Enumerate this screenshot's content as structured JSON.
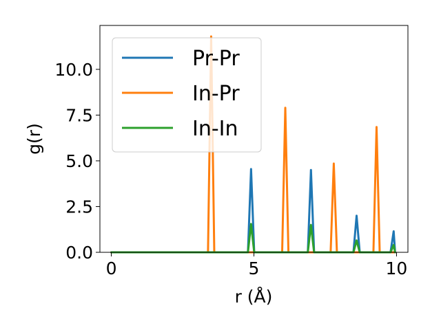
{
  "chart_data": {
    "type": "line",
    "title": "",
    "xlabel": "r (Å)",
    "ylabel": "g(r)",
    "xlim": [
      -0.4,
      10.4
    ],
    "ylim": [
      0,
      12.4
    ],
    "xticks": [
      0,
      5,
      10
    ],
    "xtick_labels": [
      "0",
      "5",
      "10"
    ],
    "yticks": [
      0,
      2.5,
      5.0,
      7.5,
      10.0
    ],
    "ytick_labels": [
      "0.0",
      "2.5",
      "5.0",
      "7.5",
      "10.0"
    ],
    "grid": false,
    "legend_position": "upper-left",
    "series": [
      {
        "name": "Pr-Pr",
        "color": "#1f77b4",
        "peaks": [
          {
            "x": 4.9,
            "y": 4.55
          },
          {
            "x": 7.0,
            "y": 4.5
          },
          {
            "x": 8.6,
            "y": 2.0
          },
          {
            "x": 9.9,
            "y": 1.15
          }
        ]
      },
      {
        "name": "In-Pr",
        "color": "#ff7f0e",
        "peaks": [
          {
            "x": 3.5,
            "y": 11.8
          },
          {
            "x": 6.1,
            "y": 7.9
          },
          {
            "x": 7.8,
            "y": 4.85
          },
          {
            "x": 9.3,
            "y": 6.85
          }
        ]
      },
      {
        "name": "In-In",
        "color": "#2ca02c",
        "peaks": [
          {
            "x": 4.9,
            "y": 1.55
          },
          {
            "x": 7.0,
            "y": 1.5
          },
          {
            "x": 8.6,
            "y": 0.65
          },
          {
            "x": 9.9,
            "y": 0.4
          }
        ]
      }
    ]
  }
}
